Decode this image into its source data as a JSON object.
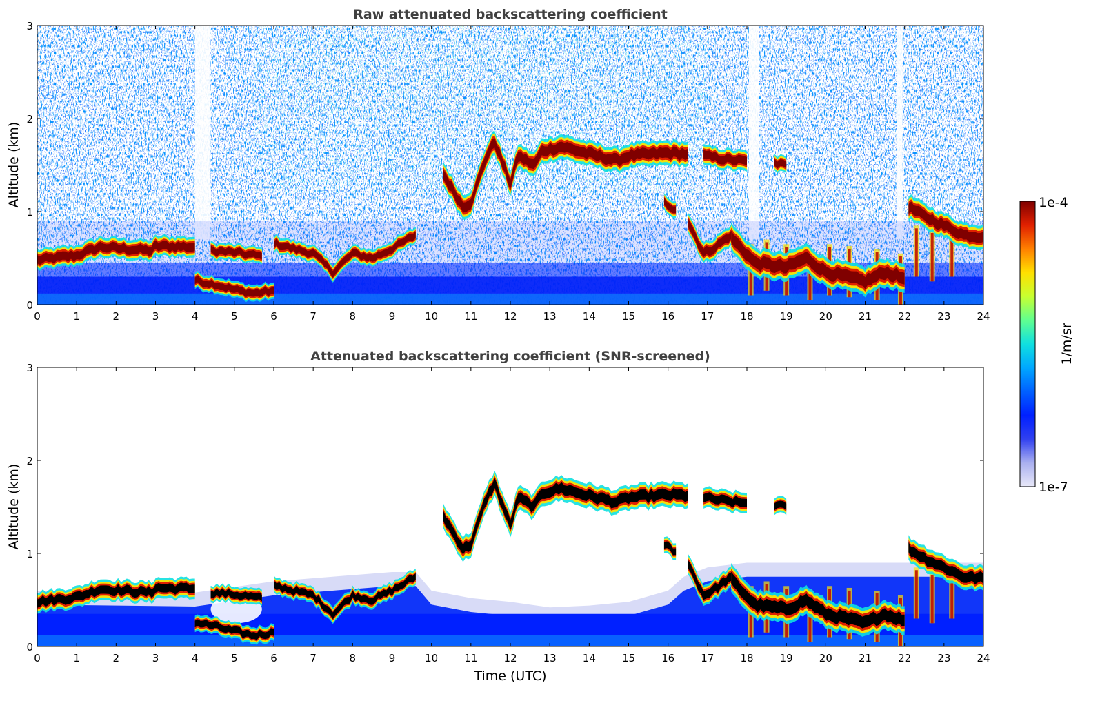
{
  "colors": {
    "colormap": [
      "#e8e8f8",
      "#aab0f0",
      "#3040f0",
      "#0020ff",
      "#0060ff",
      "#00a8ff",
      "#10e0e0",
      "#60ff90",
      "#c8ff30",
      "#ffe000",
      "#ff8000",
      "#e02000",
      "#800000"
    ],
    "snr_core": "#000000",
    "axes": "#000000",
    "title": "#404040"
  },
  "chart_data": [
    {
      "type": "heatmap",
      "title": "Raw attenuated backscattering coefficient",
      "xlabel": "",
      "ylabel": "Altitude (km)",
      "xlim": [
        0,
        24
      ],
      "ylim": [
        0,
        3
      ],
      "xticks": [
        "0",
        "1",
        "2",
        "3",
        "4",
        "5",
        "6",
        "7",
        "8",
        "9",
        "10",
        "11",
        "12",
        "13",
        "14",
        "15",
        "16",
        "17",
        "18",
        "19",
        "20",
        "21",
        "22",
        "23",
        "24"
      ],
      "yticks": [
        "0",
        "1",
        "2",
        "3"
      ],
      "noise_gaps": [
        [
          4.0,
          4.4
        ],
        [
          18.05,
          18.3
        ],
        [
          21.8,
          21.95
        ]
      ],
      "near_surface_echo": [
        [
          0,
          0.3,
          0.42
        ],
        [
          2.9,
          0.28,
          0.42
        ],
        [
          3.0,
          0.26,
          0.4
        ],
        [
          4.0,
          0.22,
          0.3
        ],
        [
          6.0,
          0.2,
          0.34
        ],
        [
          9.0,
          0.24,
          0.36
        ],
        [
          12.0,
          0.26,
          0.36
        ],
        [
          17.9,
          0.26,
          0.36
        ],
        [
          18.0,
          0.25,
          0.7
        ],
        [
          24,
          0.25,
          0.75
        ]
      ],
      "cloud_layers": [
        {
          "points": [
            [
              0,
              0.48
            ],
            [
              1,
              0.53
            ],
            [
              1.6,
              0.62
            ],
            [
              2.2,
              0.6
            ],
            [
              2.9,
              0.58
            ],
            [
              3.0,
              0.63
            ],
            [
              4.0,
              0.62
            ]
          ],
          "thickness": 0.1
        },
        {
          "points": [
            [
              4.0,
              0.26
            ],
            [
              4.5,
              0.22
            ],
            [
              5.0,
              0.16
            ],
            [
              5.5,
              0.12
            ],
            [
              6.0,
              0.15
            ]
          ],
          "thickness": 0.08
        },
        {
          "points": [
            [
              4.4,
              0.58
            ],
            [
              5.0,
              0.56
            ],
            [
              5.7,
              0.52
            ]
          ],
          "thickness": 0.08
        },
        {
          "points": [
            [
              6.0,
              0.66
            ],
            [
              6.5,
              0.6
            ],
            [
              7.0,
              0.55
            ],
            [
              7.5,
              0.35
            ],
            [
              8.0,
              0.55
            ],
            [
              8.5,
              0.5
            ],
            [
              9.0,
              0.6
            ],
            [
              9.6,
              0.75
            ]
          ],
          "thickness": 0.08
        },
        {
          "points": [
            [
              10.3,
              1.4
            ],
            [
              10.8,
              1.05
            ],
            [
              11.0,
              1.1
            ],
            [
              11.4,
              1.6
            ],
            [
              11.6,
              1.75
            ],
            [
              12.0,
              1.3
            ],
            [
              12.2,
              1.6
            ],
            [
              12.6,
              1.5
            ],
            [
              12.8,
              1.65
            ],
            [
              13.3,
              1.7
            ],
            [
              14.0,
              1.62
            ],
            [
              14.7,
              1.55
            ],
            [
              15.0,
              1.6
            ],
            [
              16.0,
              1.63
            ],
            [
              16.5,
              1.62
            ]
          ],
          "thickness": 0.12
        },
        {
          "points": [
            [
              16.9,
              1.6
            ],
            [
              17.5,
              1.56
            ],
            [
              18.0,
              1.54
            ]
          ],
          "thickness": 0.1
        },
        {
          "points": [
            [
              18.7,
              1.52
            ],
            [
              19.0,
              1.5
            ]
          ],
          "thickness": 0.08
        },
        {
          "points": [
            [
              15.9,
              1.1
            ],
            [
              16.2,
              1.02
            ]
          ],
          "thickness": 0.08
        },
        {
          "points": [
            [
              16.5,
              0.9
            ],
            [
              16.9,
              0.55
            ],
            [
              17.2,
              0.62
            ],
            [
              17.6,
              0.75
            ]
          ],
          "thickness": 0.1
        },
        {
          "points": [
            [
              17.6,
              0.72
            ],
            [
              18.2,
              0.45
            ],
            [
              19.0,
              0.4
            ],
            [
              19.5,
              0.5
            ],
            [
              20.0,
              0.35
            ],
            [
              20.5,
              0.3
            ],
            [
              21.0,
              0.25
            ],
            [
              21.5,
              0.35
            ],
            [
              22.0,
              0.28
            ]
          ],
          "thickness": 0.14
        },
        {
          "points": [
            [
              22.1,
              1.05
            ],
            [
              22.5,
              0.95
            ],
            [
              23.0,
              0.85
            ],
            [
              23.5,
              0.75
            ],
            [
              24.0,
              0.73
            ]
          ],
          "thickness": 0.12
        }
      ],
      "fall_streaks": [
        [
          18.1,
          0.1
        ],
        [
          18.5,
          0.15
        ],
        [
          19.0,
          0.1
        ],
        [
          19.6,
          0.05
        ],
        [
          20.1,
          0.1
        ],
        [
          20.6,
          0.08
        ],
        [
          21.3,
          0.05
        ],
        [
          21.9,
          0.0
        ],
        [
          22.3,
          0.3
        ],
        [
          22.7,
          0.25
        ],
        [
          23.2,
          0.3
        ]
      ]
    },
    {
      "type": "heatmap",
      "title": "Attenuated backscattering coefficient (SNR-screened)",
      "xlabel": "Time (UTC)",
      "ylabel": "Altitude (km)",
      "xlim": [
        0,
        24
      ],
      "ylim": [
        0,
        3
      ],
      "xticks": [
        "0",
        "1",
        "2",
        "3",
        "4",
        "5",
        "6",
        "7",
        "8",
        "9",
        "10",
        "11",
        "12",
        "13",
        "14",
        "15",
        "16",
        "17",
        "18",
        "19",
        "20",
        "21",
        "22",
        "23",
        "24"
      ],
      "yticks": [
        "0",
        "1",
        "2",
        "3"
      ],
      "screened_boundary": [
        [
          0,
          0.6
        ],
        [
          4,
          0.58
        ],
        [
          6,
          0.7
        ],
        [
          9,
          0.8
        ],
        [
          9.6,
          0.8
        ],
        [
          10,
          0.6
        ],
        [
          11,
          0.52
        ],
        [
          12,
          0.48
        ],
        [
          13,
          0.42
        ],
        [
          14,
          0.44
        ],
        [
          15,
          0.48
        ],
        [
          16,
          0.6
        ],
        [
          16.4,
          0.75
        ],
        [
          17,
          0.85
        ],
        [
          18,
          0.9
        ],
        [
          24,
          0.9
        ]
      ],
      "white_holes": [
        [
          4.4,
          5.7,
          0.25,
          0.55
        ]
      ],
      "cloud_layers": [
        {
          "points": [
            [
              0,
              0.48
            ],
            [
              1,
              0.53
            ],
            [
              1.6,
              0.62
            ],
            [
              2.2,
              0.6
            ],
            [
              2.9,
              0.58
            ],
            [
              3.0,
              0.63
            ],
            [
              4.0,
              0.62
            ]
          ],
          "thickness": 0.1
        },
        {
          "points": [
            [
              4.0,
              0.26
            ],
            [
              4.5,
              0.22
            ],
            [
              5.0,
              0.16
            ],
            [
              5.5,
              0.12
            ],
            [
              6.0,
              0.15
            ]
          ],
          "thickness": 0.08
        },
        {
          "points": [
            [
              4.4,
              0.58
            ],
            [
              5.0,
              0.56
            ],
            [
              5.7,
              0.52
            ]
          ],
          "thickness": 0.08
        },
        {
          "points": [
            [
              6.0,
              0.66
            ],
            [
              6.5,
              0.6
            ],
            [
              7.0,
              0.55
            ],
            [
              7.5,
              0.35
            ],
            [
              8.0,
              0.55
            ],
            [
              8.5,
              0.5
            ],
            [
              9.0,
              0.6
            ],
            [
              9.6,
              0.75
            ]
          ],
          "thickness": 0.08
        },
        {
          "points": [
            [
              10.3,
              1.4
            ],
            [
              10.8,
              1.05
            ],
            [
              11.0,
              1.1
            ],
            [
              11.4,
              1.6
            ],
            [
              11.6,
              1.75
            ],
            [
              12.0,
              1.3
            ],
            [
              12.2,
              1.6
            ],
            [
              12.6,
              1.5
            ],
            [
              12.8,
              1.65
            ],
            [
              13.3,
              1.7
            ],
            [
              14.0,
              1.62
            ],
            [
              14.7,
              1.55
            ],
            [
              15.0,
              1.6
            ],
            [
              16.0,
              1.63
            ],
            [
              16.5,
              1.62
            ]
          ],
          "thickness": 0.12
        },
        {
          "points": [
            [
              16.9,
              1.6
            ],
            [
              17.5,
              1.56
            ],
            [
              18.0,
              1.54
            ]
          ],
          "thickness": 0.1
        },
        {
          "points": [
            [
              18.7,
              1.52
            ],
            [
              19.0,
              1.5
            ]
          ],
          "thickness": 0.08
        },
        {
          "points": [
            [
              15.9,
              1.1
            ],
            [
              16.2,
              1.02
            ]
          ],
          "thickness": 0.08
        },
        {
          "points": [
            [
              16.5,
              0.9
            ],
            [
              16.9,
              0.55
            ],
            [
              17.2,
              0.62
            ],
            [
              17.6,
              0.75
            ]
          ],
          "thickness": 0.1
        },
        {
          "points": [
            [
              17.6,
              0.72
            ],
            [
              18.2,
              0.45
            ],
            [
              19.0,
              0.4
            ],
            [
              19.5,
              0.5
            ],
            [
              20.0,
              0.35
            ],
            [
              20.5,
              0.3
            ],
            [
              21.0,
              0.25
            ],
            [
              21.5,
              0.35
            ],
            [
              22.0,
              0.28
            ]
          ],
          "thickness": 0.14
        },
        {
          "points": [
            [
              22.1,
              1.05
            ],
            [
              22.5,
              0.95
            ],
            [
              23.0,
              0.85
            ],
            [
              23.5,
              0.75
            ],
            [
              24.0,
              0.73
            ]
          ],
          "thickness": 0.12
        }
      ],
      "fall_streaks": [
        [
          18.1,
          0.1
        ],
        [
          18.5,
          0.15
        ],
        [
          19.0,
          0.1
        ],
        [
          19.6,
          0.05
        ],
        [
          20.1,
          0.1
        ],
        [
          20.6,
          0.08
        ],
        [
          21.3,
          0.05
        ],
        [
          21.9,
          0.0
        ],
        [
          22.3,
          0.3
        ],
        [
          22.7,
          0.25
        ],
        [
          23.2,
          0.3
        ]
      ]
    }
  ],
  "colorbar": {
    "label": "1/m/sr",
    "max_label": "1e-4",
    "min_label": "1e-7",
    "scale": "log"
  }
}
